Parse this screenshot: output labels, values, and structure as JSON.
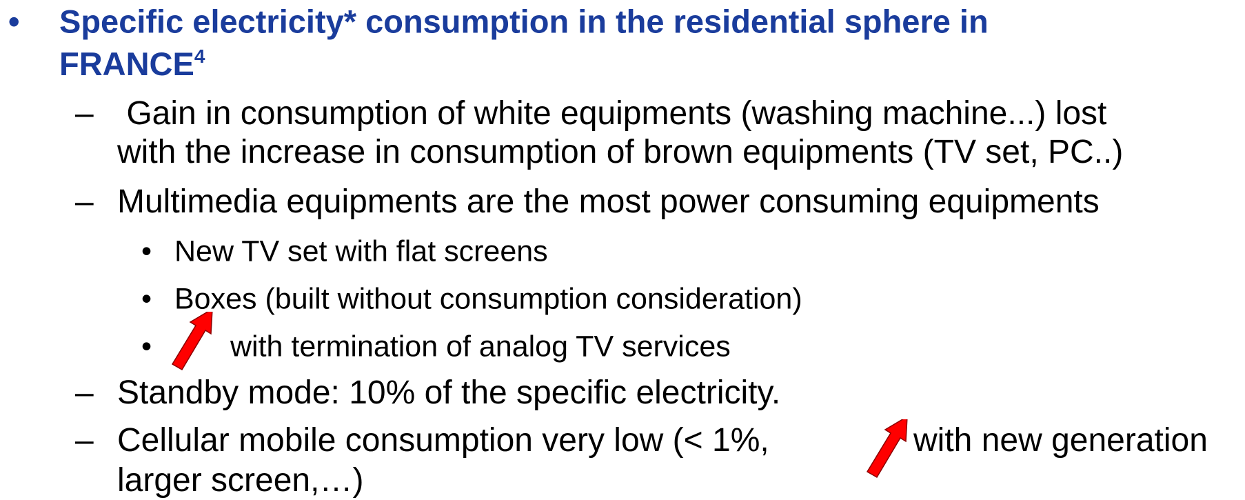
{
  "title": {
    "lines": [
      "Specific electricity* consumption in the residential sphere in",
      "FRANCE"
    ],
    "sup": "4"
  },
  "items": [
    {
      "lines": [
        " Gain in consumption of white equipments (washing machine...) lost",
        "with the increase in consumption of brown equipments (TV set, PC..)"
      ]
    },
    {
      "lines": [
        "Multimedia equipments are the most power consuming equipments"
      ],
      "subitems": [
        "New TV set with flat screens",
        "Boxes (built without consumption consideration)",
        "with termination of analog TV services"
      ]
    },
    {
      "lines": [
        "Standby mode: 10% of the specific electricity."
      ]
    },
    {
      "lines": [
        "Cellular mobile consumption very low (< 1%,",
        "with new generation",
        "larger screen,…)"
      ]
    }
  ]
}
